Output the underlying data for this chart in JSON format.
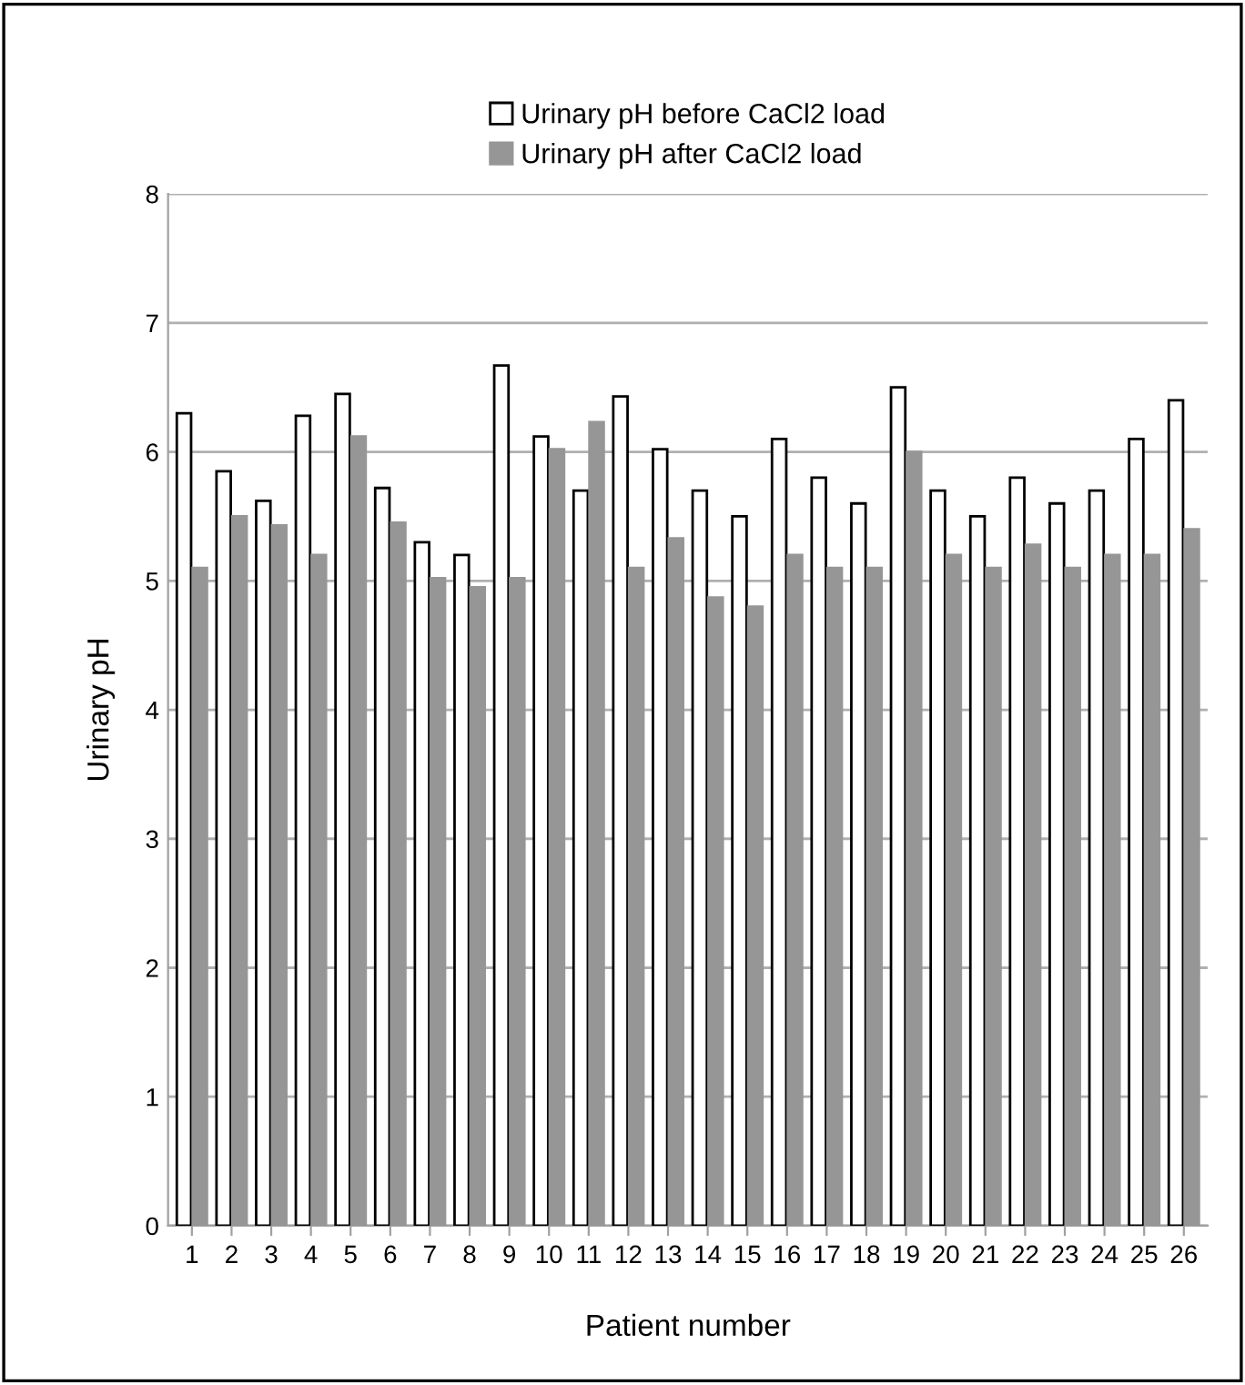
{
  "chart_data": {
    "type": "bar",
    "xlabel": "Patient number",
    "ylabel": "Urinary pH",
    "categories": [
      "1",
      "2",
      "3",
      "4",
      "5",
      "6",
      "7",
      "8",
      "9",
      "10",
      "11",
      "12",
      "13",
      "14",
      "15",
      "16",
      "17",
      "18",
      "19",
      "20",
      "21",
      "22",
      "23",
      "24",
      "25",
      "26"
    ],
    "series": [
      {
        "name": "Urinary pH before CaCl2 load",
        "color": "#ffffff",
        "values": [
          6.3,
          5.85,
          5.62,
          6.28,
          6.45,
          5.72,
          5.3,
          5.2,
          6.67,
          6.12,
          5.7,
          6.43,
          6.02,
          5.7,
          5.5,
          6.1,
          5.8,
          5.6,
          6.5,
          5.7,
          5.5,
          5.8,
          5.6,
          5.7,
          6.1,
          6.4
        ]
      },
      {
        "name": "Urinary pH after CaCl2 load",
        "color": "#969696",
        "values": [
          5.1,
          5.5,
          5.43,
          5.2,
          6.12,
          5.45,
          5.02,
          4.95,
          5.02,
          6.02,
          6.23,
          5.1,
          5.33,
          4.87,
          4.8,
          5.2,
          5.1,
          5.1,
          6.0,
          5.2,
          5.1,
          5.28,
          5.1,
          5.2,
          5.2,
          5.4
        ]
      }
    ],
    "ylim": [
      0,
      8
    ],
    "yticks": [
      0,
      1,
      2,
      3,
      4,
      5,
      6,
      7,
      8
    ],
    "grid": "y",
    "legend": "top"
  }
}
